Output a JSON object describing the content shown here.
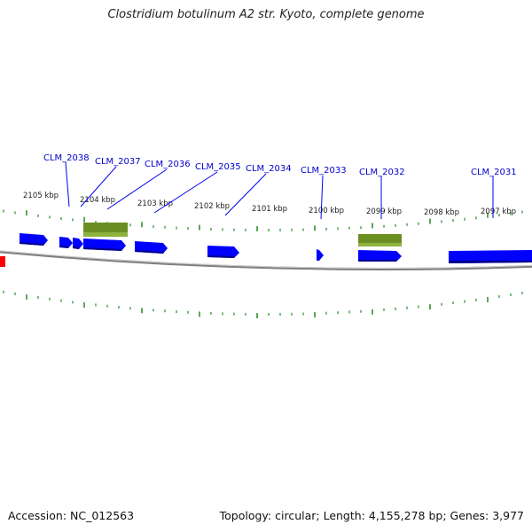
{
  "title": "Clostridium botulinum A2 str. Kyoto, complete genome",
  "footer": {
    "accession": "Accession: NC_012563",
    "topology": "Topology: circular; Length: 4,155,278 bp; Genes: 3,977"
  },
  "colors": {
    "gene_forward": "#0000ff",
    "gene_forward_shade": "#00008b",
    "rna_feature": "#6b8e23",
    "rna_feature_shade": "#8fb23f",
    "backbone": "#808080",
    "ticks": "#228b22",
    "other_feature": "#ff0000",
    "label_text": "#0000cc"
  },
  "scale": {
    "labels": [
      "2105 kbp",
      "2104 kbp",
      "2103 kbp",
      "2102 kbp",
      "2101 kbp",
      "2100 kbp",
      "2099 kbp",
      "2098 kbp",
      "2097 kbp"
    ]
  },
  "gene_labels": [
    "CLM_2038",
    "CLM_2037",
    "CLM_2036",
    "CLM_2035",
    "CLM_2034",
    "CLM_2033",
    "CLM_2032",
    "CLM_2031"
  ]
}
